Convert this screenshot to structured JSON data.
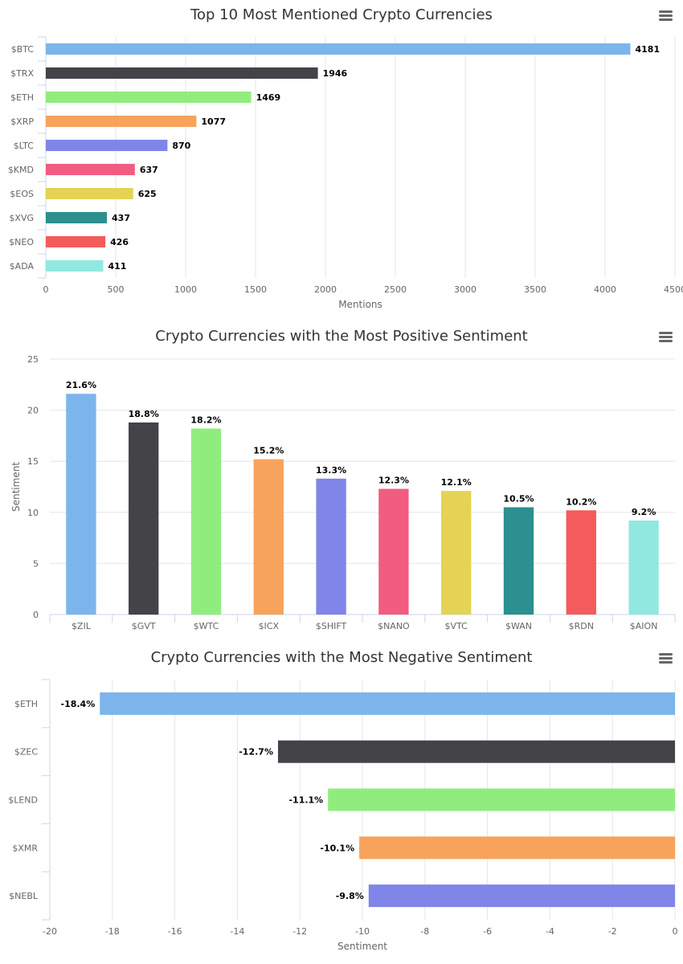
{
  "menu_icon": "hamburger-menu-icon",
  "palette": [
    "#7cb5ec",
    "#434348",
    "#90ed7d",
    "#f7a35c",
    "#8085e9",
    "#f15c80",
    "#e4d354",
    "#2b908f",
    "#f45b5b",
    "#91e8e1"
  ],
  "chart_data": [
    {
      "type": "bar",
      "orientation": "horizontal",
      "title": "Top 10 Most Mentioned Crypto Currencies",
      "categories": [
        "$BTC",
        "$TRX",
        "$ETH",
        "$XRP",
        "$LTC",
        "$KMD",
        "$EOS",
        "$XVG",
        "$NEO",
        "$ADA"
      ],
      "values": [
        4181,
        1946,
        1469,
        1077,
        870,
        637,
        625,
        437,
        426,
        411
      ],
      "data_labels": [
        "4181",
        "1946",
        "1469",
        "1077",
        "870",
        "637",
        "625",
        "437",
        "426",
        "411"
      ],
      "xlabel": "Mentions",
      "ylabel": "",
      "xlim": [
        0,
        4500
      ],
      "ticks": [
        0,
        500,
        1000,
        1500,
        2000,
        2500,
        3000,
        3500,
        4000,
        4500
      ],
      "tick_labels": [
        "0",
        "500",
        "1000",
        "1500",
        "2000",
        "2500",
        "3000",
        "3500",
        "4000",
        "4500"
      ],
      "grid": true,
      "legend": false
    },
    {
      "type": "bar",
      "orientation": "vertical",
      "title": "Crypto Currencies with the Most Positive Sentiment",
      "categories": [
        "$ZIL",
        "$GVT",
        "$WTC",
        "$ICX",
        "$SHIFT",
        "$NANO",
        "$VTC",
        "$WAN",
        "$RDN",
        "$AION"
      ],
      "values": [
        21.6,
        18.8,
        18.2,
        15.2,
        13.3,
        12.3,
        12.1,
        10.5,
        10.2,
        9.2
      ],
      "data_labels": [
        "21.6%",
        "18.8%",
        "18.2%",
        "15.2%",
        "13.3%",
        "12.3%",
        "12.1%",
        "10.5%",
        "10.2%",
        "9.2%"
      ],
      "xlabel": "",
      "ylabel": "Sentiment",
      "ylim": [
        0,
        25
      ],
      "ticks": [
        0,
        5,
        10,
        15,
        20,
        25
      ],
      "tick_labels": [
        "0",
        "5",
        "10",
        "15",
        "20",
        "25"
      ],
      "grid": true,
      "legend": false
    },
    {
      "type": "bar",
      "orientation": "horizontal",
      "title": "Crypto Currencies with the Most Negative Sentiment",
      "categories": [
        "$ETH",
        "$ZEC",
        "$LEND",
        "$XMR",
        "$NEBL"
      ],
      "values": [
        -18.4,
        -12.7,
        -11.1,
        -10.1,
        -9.8
      ],
      "data_labels": [
        "-18.4%",
        "-12.7%",
        "-11.1%",
        "-10.1%",
        "-9.8%"
      ],
      "xlabel": "Sentiment",
      "ylabel": "",
      "xlim": [
        -20,
        0
      ],
      "ticks": [
        -20,
        -18,
        -16,
        -14,
        -12,
        -10,
        -8,
        -6,
        -4,
        -2,
        0
      ],
      "tick_labels": [
        "-20",
        "-18",
        "-16",
        "-14",
        "-12",
        "-10",
        "-8",
        "-6",
        "-4",
        "-2",
        "0"
      ],
      "grid": true,
      "legend": false
    }
  ]
}
